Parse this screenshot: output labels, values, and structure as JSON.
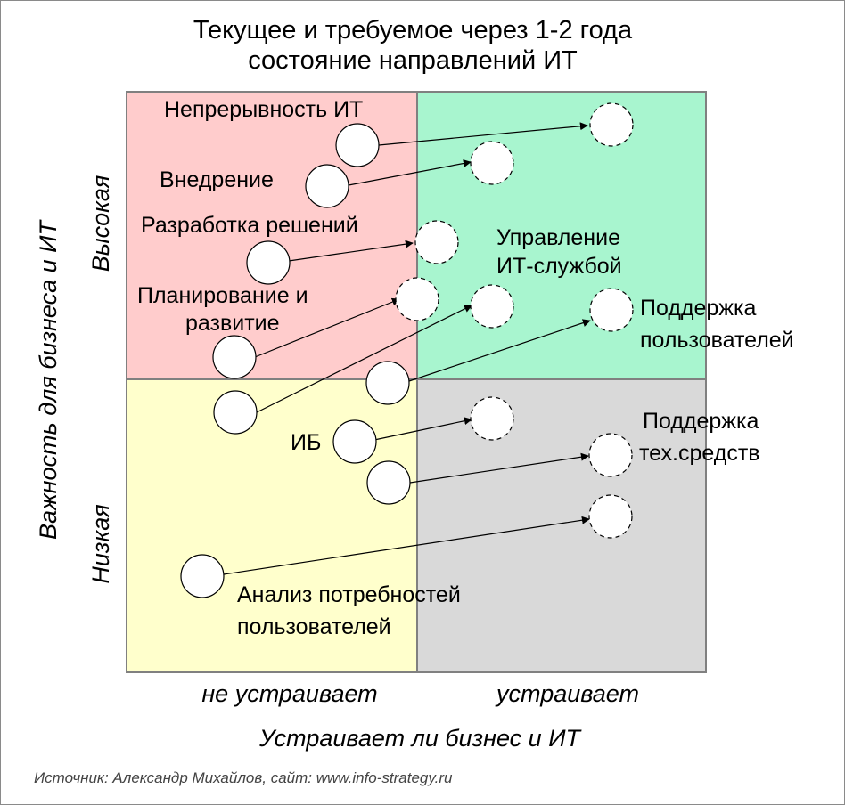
{
  "title": [
    "Текущее и требуемое через 1-2 года",
    "состояние направлений ИТ"
  ],
  "axes": {
    "x_title": "Устраивает ли бизнес и ИТ",
    "x_low": "не устраивает",
    "x_high": "устраивает",
    "y_title": "Важность для бизнеса и ИТ",
    "y_high": "Высокая",
    "y_low": "Низкая"
  },
  "quadrant_colors": {
    "top_left": "#ffcccc",
    "top_right": "#a8f5cf",
    "bottom_left": "#ffffcc",
    "bottom_right": "#d9d9d9"
  },
  "labels": {
    "continuity": "Непрерывность ИТ",
    "implementation": "Внедрение",
    "development": "Разработка решений",
    "planning_1": "Планирование и",
    "planning_2": "развитие",
    "it_service_1": "Управление",
    "it_service_2": "ИТ-службой",
    "user_support_1": "Поддержка",
    "user_support_2": "пользователей",
    "security": "ИБ",
    "hw_support_1": "Поддержка",
    "hw_support_2": "тех.средств",
    "needs_analysis_1": "Анализ потребностей",
    "needs_analysis_2": "пользователей"
  },
  "source": "Источник: Александр Михайлов, сайт: www.info-strategy.ru"
}
